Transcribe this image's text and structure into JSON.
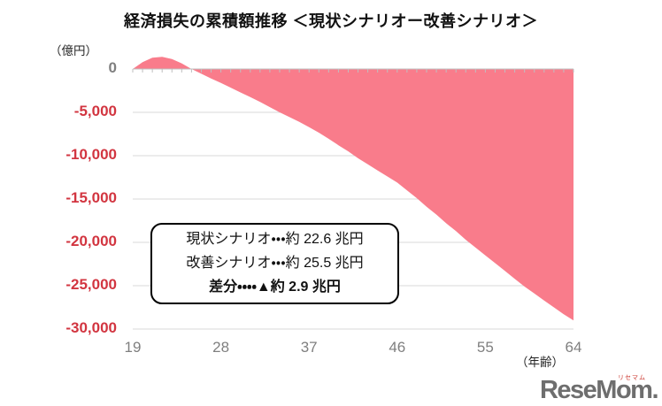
{
  "title": "経済損失の累積額推移 ＜現状シナリオー改善シナリオ＞",
  "chart_data": {
    "type": "area",
    "title": "経済損失の累積額推移 ＜現状シナリオー改善シナリオ＞",
    "ylabel": "（億円）",
    "xlabel": "（年齢）",
    "unit": "億円",
    "x": [
      19,
      20,
      21,
      22,
      23,
      24,
      25,
      26,
      27,
      28,
      29,
      30,
      31,
      32,
      33,
      34,
      35,
      36,
      37,
      38,
      39,
      40,
      41,
      42,
      43,
      44,
      45,
      46,
      47,
      48,
      49,
      50,
      51,
      52,
      53,
      54,
      55,
      56,
      57,
      58,
      59,
      60,
      61,
      62,
      63,
      64
    ],
    "values": [
      0,
      800,
      1300,
      1400,
      1150,
      650,
      0,
      -550,
      -1100,
      -1600,
      -2150,
      -2700,
      -3250,
      -3800,
      -4400,
      -5000,
      -5550,
      -6100,
      -6700,
      -7350,
      -8050,
      -8800,
      -9500,
      -10300,
      -11000,
      -11700,
      -12400,
      -13100,
      -14000,
      -14900,
      -15900,
      -16800,
      -17800,
      -18700,
      -19700,
      -20600,
      -21500,
      -22400,
      -23300,
      -24200,
      -25100,
      -25900,
      -26700,
      -27500,
      -28300,
      -29000
    ],
    "yticks": [
      0,
      -5000,
      -10000,
      -15000,
      -20000,
      -25000,
      -30000
    ],
    "xticks": [
      19,
      28,
      37,
      46,
      55,
      64
    ],
    "xlim": [
      19,
      64
    ],
    "ylim": [
      -30000,
      1500
    ],
    "grid": true,
    "legend": "none",
    "colors": {
      "area_fill": "#F97C8B",
      "gridline": "#D9D9D9",
      "axis_line": "#BFBFBF",
      "ytick_negative": "#D23540",
      "ytick_zero": "#7F7F7F",
      "xtick": "#7F7F7F"
    }
  },
  "annotation": {
    "lines": [
      {
        "text": "現状シナリオ・・・約 22.6 兆円",
        "bold": false
      },
      {
        "text": "改善シナリオ・・・約 25.5 兆円",
        "bold": false
      },
      {
        "text": "差分・・・・▲約 2.9 兆円",
        "bold": true
      }
    ]
  },
  "watermark": {
    "text": "ReseMom.",
    "ruby": "リセマム"
  }
}
